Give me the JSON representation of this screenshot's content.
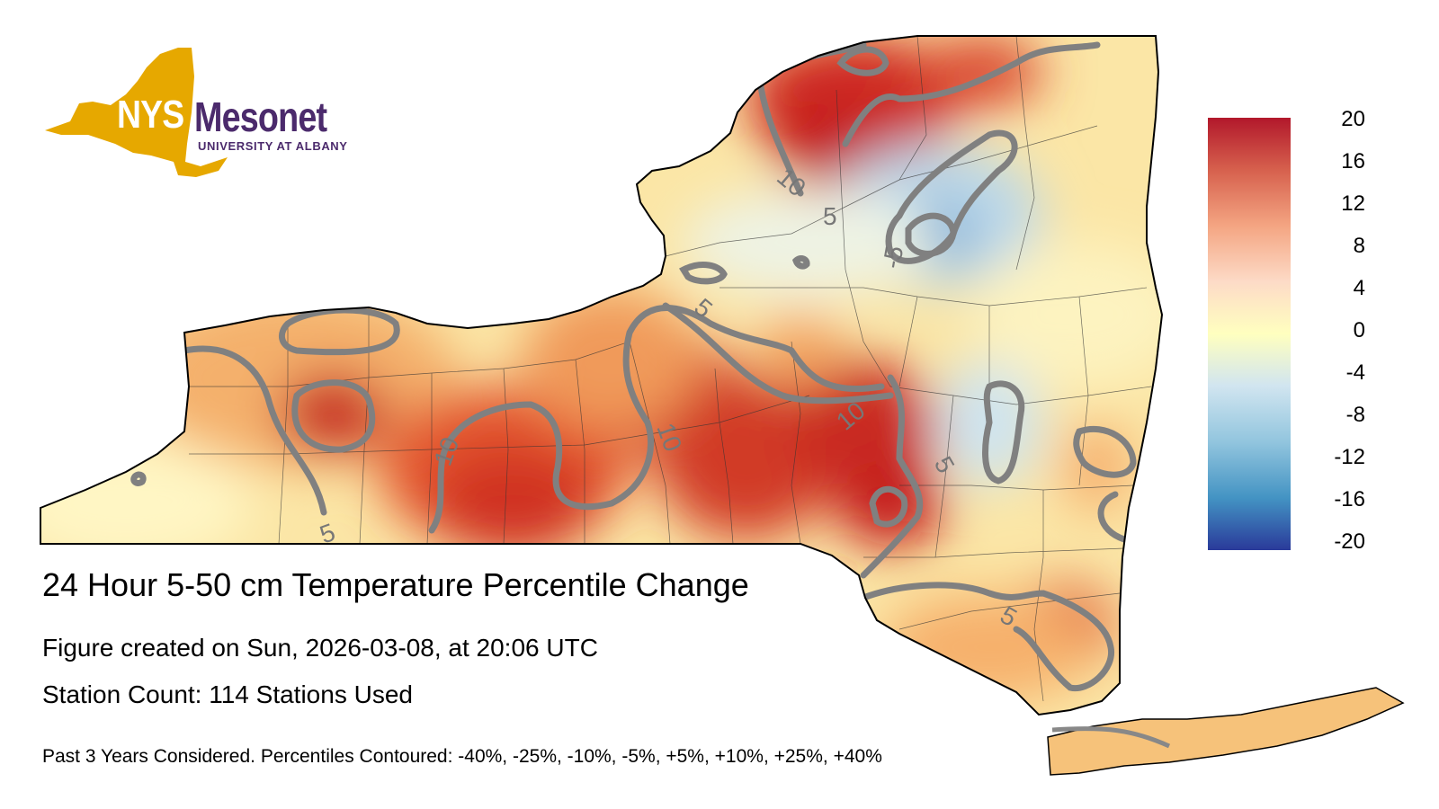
{
  "logo": {
    "short": "NYS",
    "name": "Mesonet",
    "subtitle": "UNIVERSITY AT ALBANY",
    "gold": "#e6a800",
    "purple": "#4b2a6c"
  },
  "title": "24 Hour 5-50 cm Temperature Percentile Change",
  "created": "Figure created on Sun, 2026-03-08, at 20:06 UTC",
  "station_count": "Station Count: 114 Stations Used",
  "footnote": "Past 3 Years Considered. Percentiles Contoured: -40%, -25%, -10%, -5%, +5%, +10%, +25%, +40%",
  "colorbar": {
    "ticks": [
      "20",
      "16",
      "12",
      "8",
      "4",
      "0",
      "-4",
      "-8",
      "-12",
      "-16",
      "-20"
    ],
    "colors": [
      "#b2182b",
      "#d6604d",
      "#f4a582",
      "#fddbc7",
      "#ffffbf",
      "#d1e5f0",
      "#92c5de",
      "#4393c3",
      "#2166ac"
    ]
  },
  "contour_labels": [
    "10",
    "5",
    "-5",
    "5",
    "10",
    "10",
    "10",
    "5",
    "5",
    "5"
  ]
}
